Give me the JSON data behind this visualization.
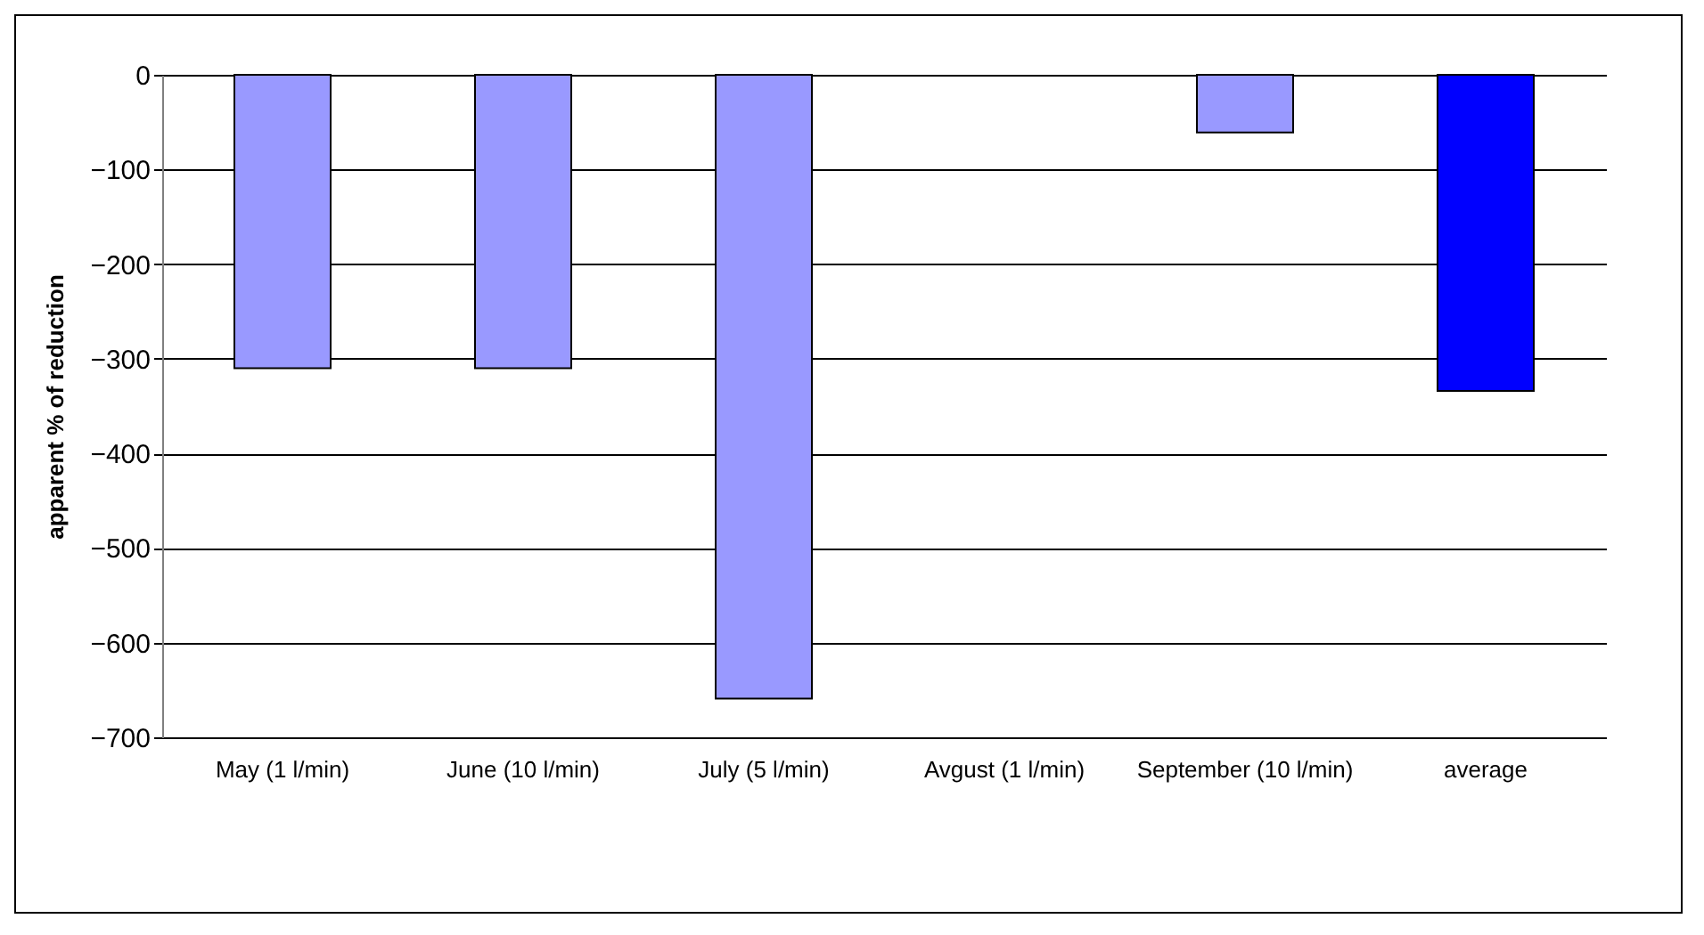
{
  "chart_data": {
    "type": "bar",
    "ylabel": "apparent % of reduction",
    "categories": [
      "May (1 l/min)",
      "June (10 l/min)",
      "July (5 l/min)",
      "Avgust (1 l/min)",
      "September (10 l/min)",
      "average"
    ],
    "values": [
      -310,
      -310,
      -659,
      null,
      -61,
      -334
    ],
    "colors": [
      "#9999ff",
      "#9999ff",
      "#9999ff",
      "#9999ff",
      "#9999ff",
      "#0000ff"
    ],
    "ylim": [
      -700,
      0
    ],
    "yticks": [
      0,
      -100,
      -200,
      -300,
      -400,
      -500,
      -600,
      -700
    ],
    "grid": "y"
  }
}
